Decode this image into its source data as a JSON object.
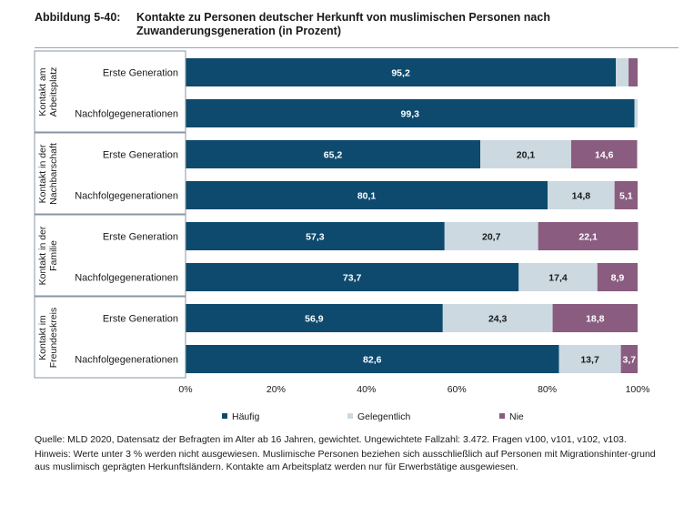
{
  "header": {
    "label": "Abbildung 5-40:",
    "title": "Kontakte zu Personen deutscher Herkunft von muslimischen Personen nach Zuwanderungsgeneration (in Prozent)"
  },
  "colors": {
    "haeufig": "#0d4a6e",
    "gelegentlich": "#ccd9e1",
    "nie": "#8a5c80"
  },
  "chart_data": {
    "type": "bar",
    "orientation": "horizontal",
    "stacked": true,
    "groups": [
      {
        "name": [
          "Kontakt am",
          "Arbeitsplatz"
        ],
        "rows": [
          {
            "label": "Erste Generation",
            "values": [
              95.2,
              2.8,
              2.0
            ],
            "labels": [
              "95,2",
              "",
              ""
            ]
          },
          {
            "label": "Nachfolgegenerationen",
            "values": [
              99.3,
              0.7,
              0
            ],
            "labels": [
              "99,3",
              "",
              ""
            ]
          }
        ]
      },
      {
        "name": [
          "Kontakt in der",
          "Nachbarschaft"
        ],
        "rows": [
          {
            "label": "Erste Generation",
            "values": [
              65.2,
              20.1,
              14.6
            ],
            "labels": [
              "65,2",
              "20,1",
              "14,6"
            ]
          },
          {
            "label": "Nachfolgegenerationen",
            "values": [
              80.1,
              14.8,
              5.1
            ],
            "labels": [
              "80,1",
              "14,8",
              "5,1"
            ]
          }
        ]
      },
      {
        "name": [
          "Kontakt in der",
          "Familie"
        ],
        "rows": [
          {
            "label": "Erste Generation",
            "values": [
              57.3,
              20.7,
              22.1
            ],
            "labels": [
              "57,3",
              "20,7",
              "22,1"
            ]
          },
          {
            "label": "Nachfolgegenerationen",
            "values": [
              73.7,
              17.4,
              8.9
            ],
            "labels": [
              "73,7",
              "17,4",
              "8,9"
            ]
          }
        ]
      },
      {
        "name": [
          "Kontakt im",
          "Freundeskreis"
        ],
        "rows": [
          {
            "label": "Erste Generation",
            "values": [
              56.9,
              24.3,
              18.8
            ],
            "labels": [
              "56,9",
              "24,3",
              "18,8"
            ]
          },
          {
            "label": "Nachfolgegenerationen",
            "values": [
              82.6,
              13.7,
              3.7
            ],
            "labels": [
              "82,6",
              "13,7",
              "3,7"
            ]
          }
        ]
      }
    ],
    "series": [
      "Häufig",
      "Gelegentlich",
      "Nie"
    ],
    "xlim": [
      0,
      100
    ],
    "xticks": [
      "0%",
      "20%",
      "40%",
      "60%",
      "80%",
      "100%"
    ],
    "legend_position": "bottom"
  },
  "footnotes": {
    "source": "Quelle: MLD 2020, Datensatz der Befragten im Alter ab 16 Jahren, gewichtet. Ungewichtete Fallzahl: 3.472. Fragen v100, v101, v102, v103.",
    "note": "Hinweis: Werte unter 3 % werden nicht ausgewiesen. Muslimische Personen beziehen sich ausschließlich auf Personen mit Migrationshinter-grund aus muslimisch geprägten Herkunftsländern. Kontakte am Arbeitsplatz werden nur für Erwerbstätige ausgewiesen."
  }
}
